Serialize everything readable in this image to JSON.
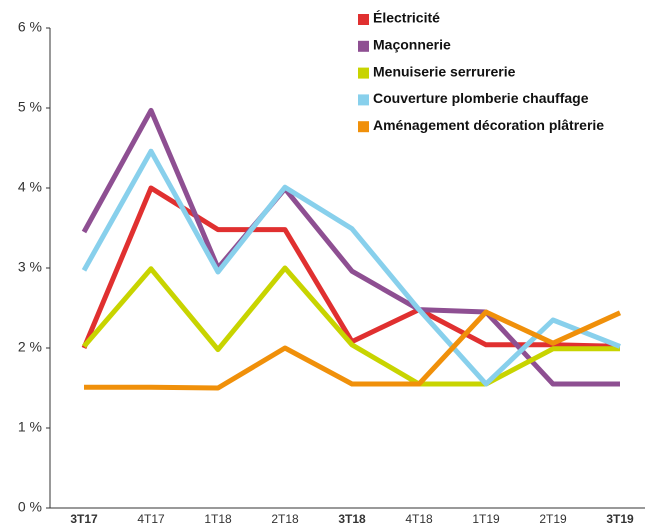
{
  "chart_data": {
    "type": "line",
    "categories": [
      "3T17",
      "4T17",
      "1T18",
      "2T18",
      "3T18",
      "4T18",
      "1T19",
      "2T19",
      "3T19"
    ],
    "series": [
      {
        "name": "Électricité",
        "color": "#e03030",
        "values": [
          2.0,
          4.0,
          3.48,
          3.48,
          2.08,
          2.48,
          2.04,
          2.04,
          2.02
        ]
      },
      {
        "name": "Maçonnerie",
        "color": "#8e4f92",
        "values": [
          3.45,
          4.97,
          3.0,
          3.99,
          2.96,
          2.48,
          2.45,
          1.55,
          1.55
        ]
      },
      {
        "name": "Menuiserie serrurerie",
        "color": "#c8d400",
        "values": [
          2.02,
          2.99,
          1.98,
          3.0,
          2.04,
          1.55,
          1.55,
          1.99,
          1.99
        ]
      },
      {
        "name": "Couverture plomberie chauffage",
        "color": "#88d0ec",
        "values": [
          2.97,
          4.46,
          2.95,
          4.01,
          3.49,
          2.48,
          1.55,
          2.35,
          2.02
        ]
      },
      {
        "name": "Aménagement décoration plâtrerie",
        "color": "#f0900a",
        "values": [
          1.51,
          1.51,
          1.5,
          2.0,
          1.55,
          1.55,
          2.45,
          2.06,
          2.44
        ]
      }
    ],
    "ylim": [
      0,
      6
    ],
    "yticks": [
      {
        "value": 0,
        "label": "0 %"
      },
      {
        "value": 1,
        "label": "1 %"
      },
      {
        "value": 2,
        "label": "2 %"
      },
      {
        "value": 3,
        "label": "3 %"
      },
      {
        "value": 4,
        "label": "4 %"
      },
      {
        "value": 5,
        "label": "5 %"
      },
      {
        "value": 6,
        "label": "6 %"
      }
    ],
    "legend": "top-right"
  }
}
